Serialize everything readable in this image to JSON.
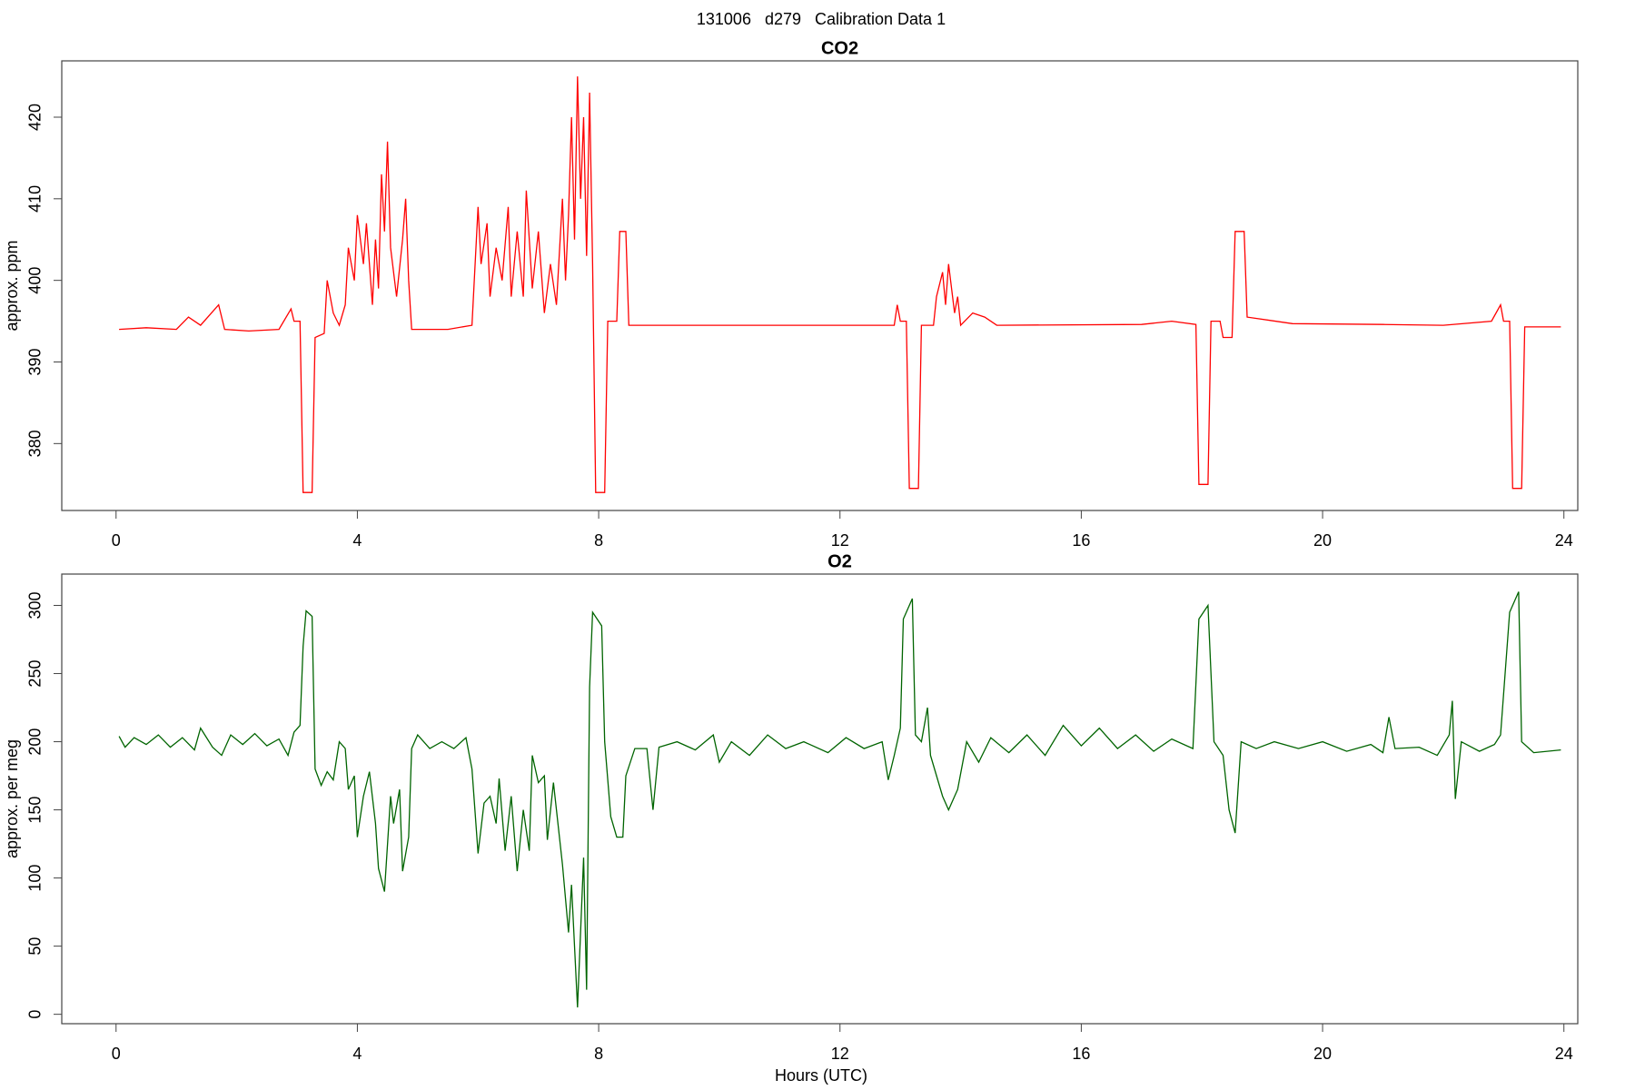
{
  "title": "131006   d279   Calibration Data 1",
  "chart_data": [
    {
      "type": "line",
      "title": "CO2",
      "ylabel": "approx. ppm",
      "color": "#ff0000",
      "xlim": [
        -0.9,
        24.23
      ],
      "xticks": [
        0,
        4,
        8,
        12,
        16,
        20,
        24
      ],
      "ylim": [
        371.8,
        426.9
      ],
      "yticks": [
        380,
        390,
        400,
        410,
        420
      ],
      "x": [
        0.05,
        0.5,
        1.0,
        1.2,
        1.4,
        1.7,
        1.8,
        2.2,
        2.7,
        2.9,
        2.95,
        3.05,
        3.1,
        3.25,
        3.3,
        3.45,
        3.5,
        3.6,
        3.7,
        3.8,
        3.85,
        3.95,
        4.0,
        4.1,
        4.15,
        4.25,
        4.3,
        4.35,
        4.4,
        4.45,
        4.5,
        4.55,
        4.65,
        4.75,
        4.8,
        4.85,
        4.9,
        5.5,
        5.9,
        6.0,
        6.05,
        6.15,
        6.2,
        6.3,
        6.4,
        6.5,
        6.55,
        6.65,
        6.75,
        6.8,
        6.9,
        7.0,
        7.1,
        7.2,
        7.3,
        7.4,
        7.45,
        7.5,
        7.55,
        7.6,
        7.65,
        7.7,
        7.75,
        7.8,
        7.85,
        7.9,
        7.95,
        8.1,
        8.15,
        8.3,
        8.35,
        8.45,
        8.5,
        12.9,
        12.95,
        13.0,
        13.1,
        13.15,
        13.3,
        13.35,
        13.55,
        13.6,
        13.7,
        13.75,
        13.8,
        13.9,
        13.95,
        14.0,
        14.2,
        14.4,
        14.6,
        17.0,
        17.5,
        17.9,
        17.95,
        18.1,
        18.15,
        18.3,
        18.35,
        18.5,
        18.55,
        18.7,
        18.75,
        19.5,
        21.0,
        22.0,
        22.8,
        22.95,
        23.0,
        23.1,
        23.15,
        23.3,
        23.35,
        23.95
      ],
      "values": [
        394,
        394.2,
        394,
        395.5,
        394.5,
        397,
        394,
        393.8,
        394,
        396.5,
        395,
        395,
        374,
        374,
        393,
        393.5,
        400,
        396,
        394.5,
        397,
        404,
        400,
        408,
        402,
        407,
        397,
        405,
        399,
        413,
        406,
        417,
        404,
        398,
        405,
        410,
        400,
        394,
        394,
        394.5,
        409,
        402,
        407,
        398,
        404,
        400,
        409,
        398,
        406,
        398,
        411,
        399,
        406,
        396,
        402,
        397,
        410,
        400,
        408,
        420,
        405,
        425,
        410,
        420,
        403,
        423,
        402,
        374,
        374,
        395,
        395,
        406,
        406,
        394.5,
        394.5,
        397,
        395,
        395,
        374.5,
        374.5,
        394.5,
        394.5,
        398,
        401,
        397,
        402,
        396,
        398,
        394.5,
        396,
        395.5,
        394.5,
        394.6,
        395,
        394.6,
        375,
        375,
        395,
        395,
        393,
        393,
        406,
        406,
        395.5,
        394.7,
        394.6,
        394.5,
        395,
        397,
        395,
        395,
        374.5,
        374.5,
        394.3,
        394.3
      ]
    },
    {
      "type": "line",
      "title": "O2",
      "ylabel": "approx. per meg",
      "xlabel": "Hours (UTC)",
      "color": "#006400",
      "xlim": [
        -0.9,
        24.23
      ],
      "xticks": [
        0,
        4,
        8,
        12,
        16,
        20,
        24
      ],
      "ylim": [
        -6.9,
        323
      ],
      "yticks": [
        0,
        50,
        100,
        150,
        200,
        250,
        300
      ],
      "x": [
        0.05,
        0.15,
        0.3,
        0.5,
        0.7,
        0.9,
        1.1,
        1.3,
        1.4,
        1.6,
        1.75,
        1.9,
        2.1,
        2.3,
        2.5,
        2.7,
        2.85,
        2.95,
        3.05,
        3.1,
        3.15,
        3.25,
        3.3,
        3.4,
        3.5,
        3.6,
        3.7,
        3.8,
        3.85,
        3.95,
        4.0,
        4.1,
        4.2,
        4.3,
        4.35,
        4.45,
        4.55,
        4.6,
        4.7,
        4.75,
        4.85,
        4.9,
        5.0,
        5.2,
        5.4,
        5.6,
        5.8,
        5.9,
        6.0,
        6.1,
        6.2,
        6.3,
        6.35,
        6.45,
        6.55,
        6.65,
        6.75,
        6.85,
        6.9,
        7.0,
        7.1,
        7.15,
        7.25,
        7.4,
        7.5,
        7.55,
        7.6,
        7.65,
        7.75,
        7.8,
        7.85,
        7.9,
        8.05,
        8.1,
        8.2,
        8.3,
        8.4,
        8.45,
        8.6,
        8.8,
        8.9,
        9.0,
        9.3,
        9.6,
        9.9,
        10.0,
        10.2,
        10.5,
        10.8,
        11.1,
        11.4,
        11.8,
        12.1,
        12.4,
        12.7,
        12.8,
        12.9,
        13.0,
        13.05,
        13.2,
        13.25,
        13.35,
        13.45,
        13.5,
        13.7,
        13.8,
        13.95,
        14.1,
        14.3,
        14.5,
        14.8,
        15.1,
        15.4,
        15.7,
        16.0,
        16.3,
        16.6,
        16.9,
        17.2,
        17.5,
        17.85,
        17.95,
        18.1,
        18.2,
        18.35,
        18.45,
        18.55,
        18.65,
        18.9,
        19.2,
        19.6,
        20.0,
        20.4,
        20.8,
        21.0,
        21.1,
        21.2,
        21.6,
        21.9,
        22.1,
        22.15,
        22.2,
        22.3,
        22.6,
        22.85,
        22.95,
        23.1,
        23.25,
        23.3,
        23.5,
        23.95
      ],
      "values": [
        204,
        196,
        203,
        198,
        205,
        196,
        203,
        194,
        210,
        196,
        190,
        205,
        198,
        206,
        197,
        202,
        190,
        207,
        212,
        270,
        296,
        292,
        180,
        168,
        178,
        172,
        200,
        195,
        165,
        175,
        130,
        160,
        178,
        140,
        107,
        90,
        160,
        140,
        165,
        105,
        130,
        195,
        205,
        195,
        200,
        195,
        203,
        180,
        118,
        155,
        160,
        140,
        173,
        120,
        160,
        105,
        150,
        120,
        190,
        170,
        175,
        128,
        170,
        110,
        60,
        95,
        50,
        5,
        115,
        18,
        240,
        295,
        285,
        200,
        145,
        130,
        130,
        175,
        195,
        195,
        150,
        196,
        200,
        194,
        205,
        185,
        200,
        190,
        205,
        195,
        200,
        192,
        203,
        195,
        200,
        172,
        190,
        210,
        290,
        305,
        205,
        200,
        225,
        190,
        160,
        150,
        165,
        200,
        185,
        203,
        192,
        205,
        190,
        212,
        197,
        210,
        195,
        205,
        193,
        202,
        195,
        290,
        300,
        200,
        190,
        150,
        133,
        200,
        195,
        200,
        195,
        200,
        193,
        198,
        192,
        218,
        195,
        196,
        190,
        205,
        230,
        158,
        200,
        193,
        198,
        205,
        295,
        310,
        200,
        192,
        194
      ]
    }
  ]
}
